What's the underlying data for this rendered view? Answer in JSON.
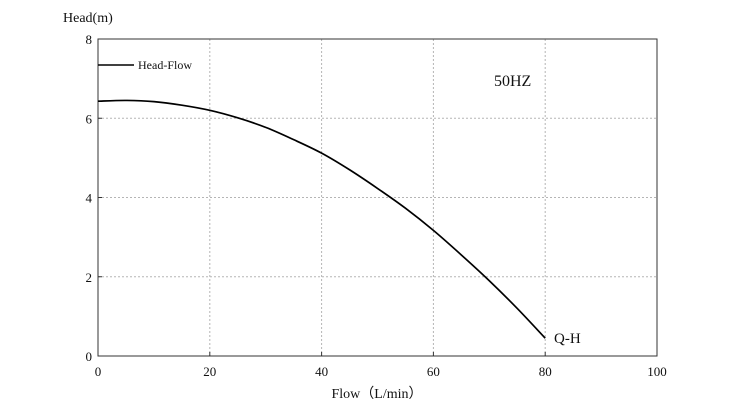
{
  "chart_data": {
    "type": "line",
    "title": "",
    "xlabel": "Flow（L/min）",
    "ylabel": "Head(m)",
    "xlim": [
      0,
      100
    ],
    "ylim": [
      0,
      8
    ],
    "xticks": [
      0,
      20,
      40,
      60,
      80,
      100
    ],
    "yticks": [
      0,
      2,
      4,
      6,
      8
    ],
    "grid": true,
    "legend": {
      "position": "top-left",
      "entries": [
        "Head-Flow"
      ]
    },
    "annotations": {
      "frequency": "50HZ",
      "curve_label": "Q-H"
    },
    "series": [
      {
        "name": "Head-Flow",
        "x": [
          0,
          5,
          10,
          15,
          20,
          25,
          30,
          35,
          40,
          45,
          50,
          55,
          60,
          65,
          70,
          75,
          80
        ],
        "y": [
          6.43,
          6.45,
          6.42,
          6.33,
          6.2,
          6.01,
          5.77,
          5.46,
          5.12,
          4.7,
          4.23,
          3.73,
          3.17,
          2.55,
          1.9,
          1.2,
          0.45
        ]
      }
    ],
    "colors": {
      "line": "#000000",
      "grid": "#b5b5b5",
      "frame": "#333333"
    }
  }
}
